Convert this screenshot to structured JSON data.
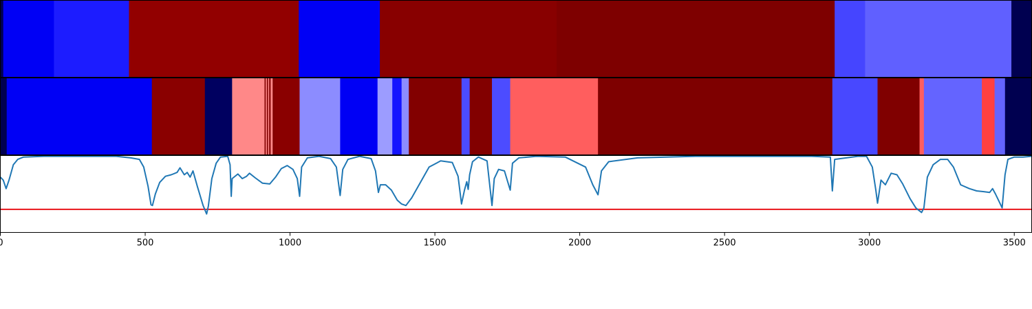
{
  "chart_data": {
    "type": "heatmap",
    "xlim": [
      0,
      3560
    ],
    "xticks": [
      0,
      500,
      1000,
      1500,
      2000,
      2500,
      3000,
      3500
    ],
    "xtick_labels": [
      "0",
      "500",
      "1000",
      "1500",
      "2000",
      "2500",
      "3000",
      "3500"
    ],
    "grid": false,
    "colors": {
      "frame": "#000000",
      "threshold": "#e8141a",
      "line": "#1f77b4",
      "background": "#ffffff"
    },
    "track_top": {
      "segments": [
        {
          "start": 0,
          "end": 10,
          "color": "#000050"
        },
        {
          "start": 10,
          "end": 185,
          "color": "#0000f5"
        },
        {
          "start": 185,
          "end": 444,
          "color": "#1c1cff"
        },
        {
          "start": 444,
          "end": 1030,
          "color": "#920000"
        },
        {
          "start": 1030,
          "end": 1310,
          "color": "#0000f5"
        },
        {
          "start": 1310,
          "end": 1920,
          "color": "#880000"
        },
        {
          "start": 1920,
          "end": 2880,
          "color": "#7e0000"
        },
        {
          "start": 2880,
          "end": 2985,
          "color": "#4545ff"
        },
        {
          "start": 2985,
          "end": 3490,
          "color": "#6060ff"
        },
        {
          "start": 3490,
          "end": 3560,
          "color": "#000050"
        }
      ]
    },
    "track_bottom": {
      "segments": [
        {
          "start": 0,
          "end": 22,
          "color": "#000050"
        },
        {
          "start": 22,
          "end": 523,
          "color": "#0000f5"
        },
        {
          "start": 523,
          "end": 706,
          "color": "#8a0000"
        },
        {
          "start": 706,
          "end": 800,
          "color": "#000060"
        },
        {
          "start": 800,
          "end": 912,
          "color": "#ff8888"
        },
        {
          "start": 912,
          "end": 916,
          "color": "#800000"
        },
        {
          "start": 916,
          "end": 920,
          "color": "#ff8888"
        },
        {
          "start": 920,
          "end": 924,
          "color": "#800000"
        },
        {
          "start": 924,
          "end": 928,
          "color": "#ff8888"
        },
        {
          "start": 928,
          "end": 933,
          "color": "#800000"
        },
        {
          "start": 933,
          "end": 940,
          "color": "#ff8888"
        },
        {
          "start": 940,
          "end": 945,
          "color": "#800000"
        },
        {
          "start": 945,
          "end": 1033,
          "color": "#8a0000"
        },
        {
          "start": 1033,
          "end": 1173,
          "color": "#8c8cff"
        },
        {
          "start": 1173,
          "end": 1302,
          "color": "#0000f5"
        },
        {
          "start": 1302,
          "end": 1353,
          "color": "#9c9cff"
        },
        {
          "start": 1353,
          "end": 1385,
          "color": "#1414ff"
        },
        {
          "start": 1385,
          "end": 1410,
          "color": "#8c8cff"
        },
        {
          "start": 1410,
          "end": 1592,
          "color": "#820000"
        },
        {
          "start": 1592,
          "end": 1620,
          "color": "#4c4cff"
        },
        {
          "start": 1620,
          "end": 1697,
          "color": "#820000"
        },
        {
          "start": 1697,
          "end": 1760,
          "color": "#4c4cff"
        },
        {
          "start": 1760,
          "end": 2063,
          "color": "#ff5e5e"
        },
        {
          "start": 2063,
          "end": 2872,
          "color": "#7e0000"
        },
        {
          "start": 2872,
          "end": 3028,
          "color": "#4848ff"
        },
        {
          "start": 3028,
          "end": 3173,
          "color": "#800000"
        },
        {
          "start": 3173,
          "end": 3188,
          "color": "#ff5e5e"
        },
        {
          "start": 3188,
          "end": 3388,
          "color": "#6464ff"
        },
        {
          "start": 3388,
          "end": 3432,
          "color": "#ff4040"
        },
        {
          "start": 3432,
          "end": 3468,
          "color": "#6464ff"
        },
        {
          "start": 3468,
          "end": 3560,
          "color": "#000050"
        }
      ]
    },
    "line_series": {
      "threshold": 0.7,
      "ylim": [
        0,
        1
      ],
      "points": [
        [
          0,
          0.28
        ],
        [
          10,
          0.32
        ],
        [
          20,
          0.43
        ],
        [
          30,
          0.32
        ],
        [
          45,
          0.12
        ],
        [
          60,
          0.05
        ],
        [
          80,
          0.02
        ],
        [
          150,
          0.01
        ],
        [
          300,
          0.01
        ],
        [
          400,
          0.01
        ],
        [
          450,
          0.03
        ],
        [
          480,
          0.05
        ],
        [
          495,
          0.15
        ],
        [
          510,
          0.4
        ],
        [
          520,
          0.64
        ],
        [
          525,
          0.65
        ],
        [
          535,
          0.5
        ],
        [
          550,
          0.35
        ],
        [
          570,
          0.27
        ],
        [
          590,
          0.25
        ],
        [
          610,
          0.22
        ],
        [
          620,
          0.16
        ],
        [
          635,
          0.25
        ],
        [
          645,
          0.22
        ],
        [
          655,
          0.28
        ],
        [
          665,
          0.2
        ],
        [
          680,
          0.4
        ],
        [
          700,
          0.65
        ],
        [
          712,
          0.76
        ],
        [
          718,
          0.66
        ],
        [
          730,
          0.3
        ],
        [
          745,
          0.1
        ],
        [
          760,
          0.02
        ],
        [
          785,
          0.01
        ],
        [
          793,
          0.12
        ],
        [
          797,
          0.53
        ],
        [
          800,
          0.3
        ],
        [
          820,
          0.24
        ],
        [
          835,
          0.3
        ],
        [
          850,
          0.27
        ],
        [
          860,
          0.23
        ],
        [
          880,
          0.29
        ],
        [
          905,
          0.36
        ],
        [
          930,
          0.37
        ],
        [
          950,
          0.28
        ],
        [
          970,
          0.17
        ],
        [
          990,
          0.13
        ],
        [
          1010,
          0.18
        ],
        [
          1025,
          0.3
        ],
        [
          1033,
          0.53
        ],
        [
          1040,
          0.15
        ],
        [
          1060,
          0.03
        ],
        [
          1100,
          0.01
        ],
        [
          1140,
          0.04
        ],
        [
          1160,
          0.15
        ],
        [
          1173,
          0.52
        ],
        [
          1182,
          0.18
        ],
        [
          1200,
          0.05
        ],
        [
          1240,
          0.01
        ],
        [
          1280,
          0.04
        ],
        [
          1295,
          0.2
        ],
        [
          1305,
          0.48
        ],
        [
          1312,
          0.38
        ],
        [
          1330,
          0.38
        ],
        [
          1350,
          0.45
        ],
        [
          1370,
          0.58
        ],
        [
          1385,
          0.63
        ],
        [
          1400,
          0.65
        ],
        [
          1420,
          0.55
        ],
        [
          1450,
          0.35
        ],
        [
          1480,
          0.15
        ],
        [
          1520,
          0.07
        ],
        [
          1560,
          0.09
        ],
        [
          1580,
          0.27
        ],
        [
          1592,
          0.63
        ],
        [
          1602,
          0.45
        ],
        [
          1610,
          0.34
        ],
        [
          1615,
          0.44
        ],
        [
          1620,
          0.25
        ],
        [
          1630,
          0.08
        ],
        [
          1650,
          0.02
        ],
        [
          1680,
          0.07
        ],
        [
          1697,
          0.65
        ],
        [
          1705,
          0.3
        ],
        [
          1720,
          0.18
        ],
        [
          1740,
          0.2
        ],
        [
          1760,
          0.45
        ],
        [
          1768,
          0.1
        ],
        [
          1790,
          0.03
        ],
        [
          1850,
          0.01
        ],
        [
          1950,
          0.02
        ],
        [
          2020,
          0.15
        ],
        [
          2045,
          0.38
        ],
        [
          2063,
          0.51
        ],
        [
          2075,
          0.2
        ],
        [
          2100,
          0.08
        ],
        [
          2200,
          0.03
        ],
        [
          2400,
          0.01
        ],
        [
          2600,
          0.01
        ],
        [
          2800,
          0.01
        ],
        [
          2865,
          0.02
        ],
        [
          2872,
          0.46
        ],
        [
          2880,
          0.05
        ],
        [
          2960,
          0.01
        ],
        [
          2990,
          0.01
        ],
        [
          3010,
          0.15
        ],
        [
          3022,
          0.45
        ],
        [
          3028,
          0.62
        ],
        [
          3040,
          0.32
        ],
        [
          3055,
          0.38
        ],
        [
          3075,
          0.23
        ],
        [
          3095,
          0.25
        ],
        [
          3115,
          0.37
        ],
        [
          3140,
          0.56
        ],
        [
          3160,
          0.68
        ],
        [
          3173,
          0.72
        ],
        [
          3180,
          0.74
        ],
        [
          3188,
          0.68
        ],
        [
          3200,
          0.28
        ],
        [
          3220,
          0.12
        ],
        [
          3245,
          0.05
        ],
        [
          3270,
          0.05
        ],
        [
          3290,
          0.15
        ],
        [
          3315,
          0.38
        ],
        [
          3345,
          0.43
        ],
        [
          3370,
          0.46
        ],
        [
          3395,
          0.47
        ],
        [
          3415,
          0.48
        ],
        [
          3425,
          0.43
        ],
        [
          3435,
          0.5
        ],
        [
          3448,
          0.6
        ],
        [
          3458,
          0.68
        ],
        [
          3468,
          0.25
        ],
        [
          3478,
          0.05
        ],
        [
          3500,
          0.02
        ],
        [
          3530,
          0.02
        ],
        [
          3560,
          0.01
        ]
      ]
    }
  }
}
